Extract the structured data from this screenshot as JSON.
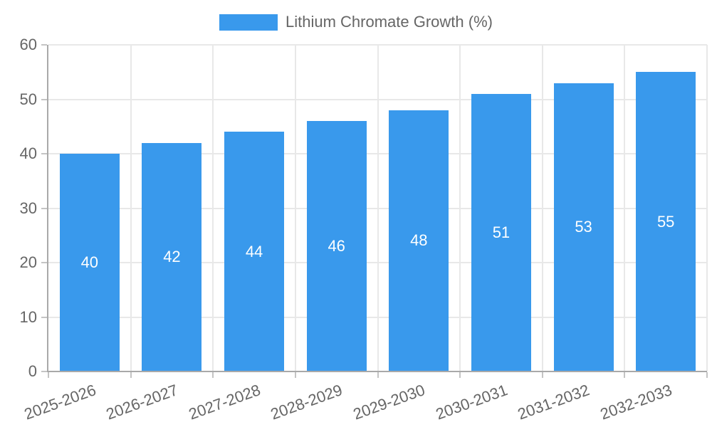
{
  "chart_data": {
    "type": "bar",
    "title": "",
    "legend_label": "Lithium Chromate Growth (%)",
    "legend_position": "top",
    "categories": [
      "2025-2026",
      "2026-2027",
      "2027-2028",
      "2028-2029",
      "2029-2030",
      "2030-2031",
      "2031-2032",
      "2032-2033"
    ],
    "values": [
      40,
      42,
      44,
      46,
      48,
      51,
      53,
      55
    ],
    "xlabel": "",
    "ylabel": "",
    "ylim": [
      0,
      60
    ],
    "y_ticks": [
      0,
      10,
      20,
      30,
      40,
      50,
      60
    ],
    "grid": true,
    "colors": {
      "bar": "#3999ec",
      "grid": "#e8e8e8",
      "axis": "#a9a9a9",
      "tick_mark": "#c4c4c4",
      "text": "#666666",
      "value_label": "#ffffff",
      "background": "#ffffff"
    }
  }
}
